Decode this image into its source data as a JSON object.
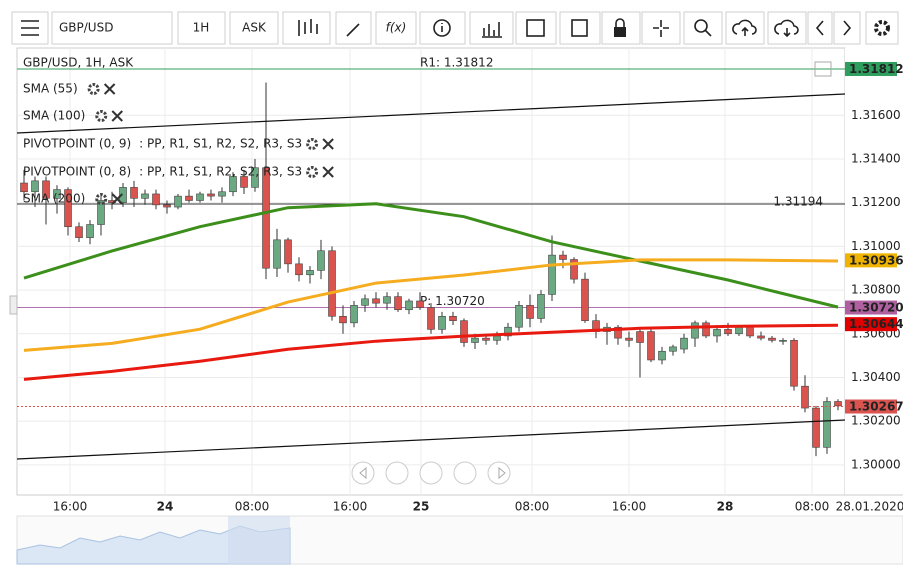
{
  "toolbar": {
    "symbol": "GBP/USD",
    "timeframe": "1H",
    "side": "ASK",
    "function_button": "f(x)"
  },
  "chart_data": {
    "type": "candlestick",
    "title": "GBP/USD, 1H, ASK",
    "open": [
      1.3129,
      1.3125,
      1.313,
      1.3122,
      1.3126,
      1.3109,
      1.3104,
      1.311,
      1.3121,
      1.312,
      1.3127,
      1.3122,
      1.3124,
      1.3119,
      1.3118,
      1.3123,
      1.3121,
      1.3124,
      1.3123,
      1.3125,
      1.3132,
      1.3127,
      1.3136,
      1.309,
      1.3103,
      1.3092,
      1.3087,
      1.3089,
      1.3098,
      1.3068,
      1.3065,
      1.3073,
      1.3076,
      1.3074,
      1.3077,
      1.3071,
      1.3075,
      1.3072,
      1.3062,
      1.3068,
      1.3066,
      1.3056,
      1.3058,
      1.3057,
      1.3059,
      1.3063,
      1.3073,
      1.3067,
      1.3078,
      1.3096,
      1.3094,
      1.3085,
      1.3066,
      1.3061,
      1.3063,
      1.3058,
      1.3061,
      1.3061,
      1.3048,
      1.3052,
      1.3053,
      1.3058,
      1.3065,
      1.3059,
      1.3062,
      1.306,
      1.3063,
      1.3059,
      1.3058,
      1.3057,
      1.3057,
      1.3036,
      1.3026,
      1.3008,
      1.3029
    ],
    "high": [
      1.3135,
      1.3132,
      1.3132,
      1.3128,
      1.3127,
      1.3111,
      1.3112,
      1.3124,
      1.3125,
      1.3129,
      1.313,
      1.3126,
      1.3126,
      1.3121,
      1.3124,
      1.3126,
      1.3125,
      1.3126,
      1.3127,
      1.3134,
      1.3135,
      1.314,
      1.3175,
      1.3108,
      1.3104,
      1.3095,
      1.3091,
      1.3103,
      1.31,
      1.3073,
      1.3075,
      1.3078,
      1.3079,
      1.3079,
      1.3079,
      1.3076,
      1.3079,
      1.3074,
      1.307,
      1.307,
      1.3067,
      1.306,
      1.306,
      1.3061,
      1.3065,
      1.3075,
      1.3078,
      1.308,
      1.3105,
      1.3098,
      1.3095,
      1.3088,
      1.3069,
      1.3065,
      1.3064,
      1.3061,
      1.3062,
      1.3062,
      1.3054,
      1.3055,
      1.306,
      1.3066,
      1.3066,
      1.3064,
      1.3065,
      1.3064,
      1.3064,
      1.3061,
      1.3059,
      1.3058,
      1.3058,
      1.3041,
      1.3027,
      1.3031,
      1.303
    ],
    "low": [
      1.3121,
      1.3118,
      1.311,
      1.3115,
      1.3105,
      1.3102,
      1.3101,
      1.3105,
      1.3117,
      1.3118,
      1.3118,
      1.3119,
      1.3117,
      1.3115,
      1.3117,
      1.312,
      1.312,
      1.3121,
      1.312,
      1.3123,
      1.3124,
      1.3125,
      1.3085,
      1.3086,
      1.3088,
      1.3084,
      1.3083,
      1.3085,
      1.3066,
      1.306,
      1.3063,
      1.307,
      1.3072,
      1.3071,
      1.307,
      1.3069,
      1.3071,
      1.306,
      1.306,
      1.3064,
      1.3054,
      1.3053,
      1.3055,
      1.3055,
      1.3057,
      1.3061,
      1.3063,
      1.3065,
      1.3075,
      1.309,
      1.3083,
      1.3065,
      1.3058,
      1.3055,
      1.3055,
      1.3054,
      1.304,
      1.3047,
      1.3046,
      1.305,
      1.3051,
      1.3054,
      1.3058,
      1.3056,
      1.3059,
      1.3059,
      1.3058,
      1.3057,
      1.3056,
      1.3055,
      1.3034,
      1.3024,
      1.3004,
      1.3005,
      1.3025
    ],
    "close": [
      1.3125,
      1.313,
      1.3122,
      1.3126,
      1.3109,
      1.3104,
      1.311,
      1.3121,
      1.312,
      1.3127,
      1.3122,
      1.3124,
      1.3119,
      1.3118,
      1.3123,
      1.3121,
      1.3124,
      1.3123,
      1.3125,
      1.3132,
      1.3127,
      1.3136,
      1.309,
      1.3103,
      1.3092,
      1.3087,
      1.3089,
      1.3098,
      1.3068,
      1.3065,
      1.3073,
      1.3076,
      1.3074,
      1.3077,
      1.3071,
      1.3075,
      1.3072,
      1.3062,
      1.3068,
      1.3066,
      1.3056,
      1.3058,
      1.3057,
      1.3059,
      1.3063,
      1.3073,
      1.3067,
      1.3078,
      1.3096,
      1.3094,
      1.3085,
      1.3066,
      1.3061,
      1.3063,
      1.3058,
      1.3057,
      1.3056,
      1.3048,
      1.3052,
      1.3054,
      1.3058,
      1.3065,
      1.3059,
      1.3062,
      1.306,
      1.3063,
      1.3059,
      1.3058,
      1.3057,
      1.3057,
      1.3036,
      1.3026,
      1.3008,
      1.3029,
      1.3027
    ],
    "up_color": "#6aa982",
    "down_color": "#d9534f",
    "series": [
      {
        "name": "SMA (55)",
        "color": "#3b8f1a",
        "x": [
          0,
          8,
          16,
          24,
          32,
          40,
          48,
          56,
          64,
          74
        ],
        "values": [
          1.30855,
          1.30979,
          1.3109,
          1.31177,
          1.31195,
          1.31136,
          1.31021,
          1.30933,
          1.30846,
          1.30722
        ]
      },
      {
        "name": "SMA (100)",
        "color": "#f5ac1f",
        "x": [
          0,
          8,
          16,
          24,
          32,
          40,
          48,
          56,
          64,
          74
        ],
        "values": [
          1.30524,
          1.30556,
          1.30621,
          1.30745,
          1.30832,
          1.30869,
          1.30915,
          1.30938,
          1.30938,
          1.30933
        ]
      },
      {
        "name": "SMA (200)",
        "color": "#e8190f",
        "x": [
          0,
          8,
          16,
          24,
          32,
          40,
          48,
          56,
          64,
          74
        ],
        "values": [
          1.30391,
          1.30428,
          1.30474,
          1.30529,
          1.30566,
          1.30589,
          1.30607,
          1.30625,
          1.30634,
          1.30639
        ]
      }
    ],
    "indicators": [
      {
        "name": "PIVOTPOINT (0, 9)",
        "parts": [
          {
            "text": ": PP,",
            "color": "#c83cc8"
          },
          {
            "text": "R1,",
            "color": "#9b3cc8"
          },
          {
            "text": "S1,",
            "color": "#9b3cc8"
          },
          {
            "text": "R2,",
            "color": "#9b3cc8"
          },
          {
            "text": "S2,",
            "color": "#9b3cc8"
          },
          {
            "text": "R3,",
            "color": "#9b3cc8"
          },
          {
            "text": "S3",
            "color": "#1a9aa8"
          }
        ]
      },
      {
        "name": "PIVOTPOINT (0, 8)",
        "parts": [
          {
            "text": ": PP,",
            "color": "#c83cc8"
          },
          {
            "text": "R1,",
            "color": "#2e9e5e"
          },
          {
            "text": "S1,",
            "color": "#8a7a1a"
          },
          {
            "text": "R2,",
            "color": "#2a5ab8"
          },
          {
            "text": "S2,",
            "color": "#8a5a1a"
          },
          {
            "text": "R3,",
            "color": "#a0501a"
          },
          {
            "text": "S3",
            "color": "#c83cc8"
          }
        ]
      }
    ],
    "levels": [
      {
        "value": 1.31812,
        "label": "R1: 1.31812",
        "color": "#2e9e5e"
      },
      {
        "value": 1.31194,
        "color": "#333333"
      },
      {
        "value": 1.3072,
        "label": "P: 1.30720",
        "color": "#b070b0"
      }
    ],
    "price_tags": [
      {
        "value": 1.31812,
        "color": "#2e9e5e"
      },
      {
        "value": 1.30936,
        "label": "1.30936",
        "color": "#f0b400"
      },
      {
        "value": 1.3072,
        "label": "1.30720",
        "color": "#b060a0"
      },
      {
        "value": 1.30644,
        "label": "1.30644",
        "color": "#e00000"
      },
      {
        "value": 1.30267,
        "label": "1.30267",
        "color": "#d9534f",
        "dashed": true
      }
    ],
    "ylim": [
      1.29862,
      1.31908
    ],
    "yticks": [
      {
        "value": 1.3,
        "label": "1.30000"
      },
      {
        "value": 1.302,
        "label": "1.30200"
      },
      {
        "value": 1.304,
        "label": "1.30400"
      },
      {
        "value": 1.306,
        "label": "1.30600"
      },
      {
        "value": 1.308,
        "label": "1.30800"
      },
      {
        "value": 1.31,
        "label": "1.31000"
      },
      {
        "value": 1.312,
        "label": "1.31200"
      },
      {
        "value": 1.314,
        "label": "1.31400"
      },
      {
        "value": 1.316,
        "label": "1.31600"
      }
    ],
    "x_labels": [
      "16:00",
      "24",
      "08:00",
      "16:00",
      "25",
      "08:00",
      "16:00",
      "28",
      "08:00",
      "28.01.2020"
    ],
    "grid": true
  }
}
